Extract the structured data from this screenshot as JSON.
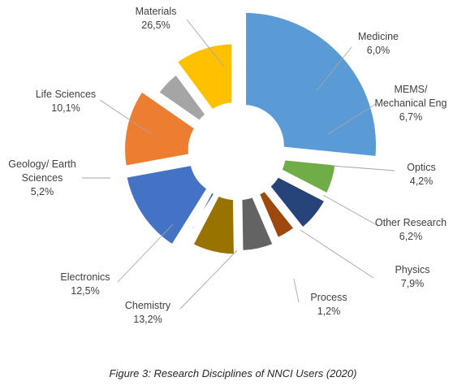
{
  "chart_data": {
    "type": "pie",
    "categories": [
      "Materials",
      "Medicine",
      "MEMS/ Mechanical Eng",
      "Optics",
      "Other Research",
      "Physics",
      "Process",
      "Chemistry",
      "Electronics",
      "Geology/ Earth Sciences",
      "Life Sciences"
    ],
    "values": [
      26.5,
      6.0,
      6.7,
      4.2,
      6.2,
      7.9,
      1.2,
      13.2,
      12.5,
      5.2,
      10.1
    ],
    "value_labels": [
      "26,5%",
      "6,0%",
      "6,7%",
      "4,2%",
      "6,2%",
      "7,9%",
      "1,2%",
      "13,2%",
      "12,5%",
      "5,2%",
      "10,1%"
    ],
    "label_lines": [
      [
        "Materials"
      ],
      [
        "Medicine"
      ],
      [
        "MEMS/",
        "Mechanical Eng"
      ],
      [
        "Optics"
      ],
      [
        "Other Research"
      ],
      [
        "Physics"
      ],
      [
        "Process"
      ],
      [
        "Chemistry"
      ],
      [
        "Electronics"
      ],
      [
        "Geology/ Earth",
        "Sciences"
      ],
      [
        "Life Sciences"
      ]
    ],
    "colors": [
      "#5b9bd5",
      "#70ad47",
      "#264478",
      "#9e480e",
      "#636363",
      "#997300",
      "#255e91",
      "#4472c4",
      "#ed7d31",
      "#a5a5a5",
      "#ffc000"
    ],
    "style": "exploded doughnut with per-slice radius"
  },
  "caption": "Figure 3: Research Disciplines of NNCI Users (2020)"
}
